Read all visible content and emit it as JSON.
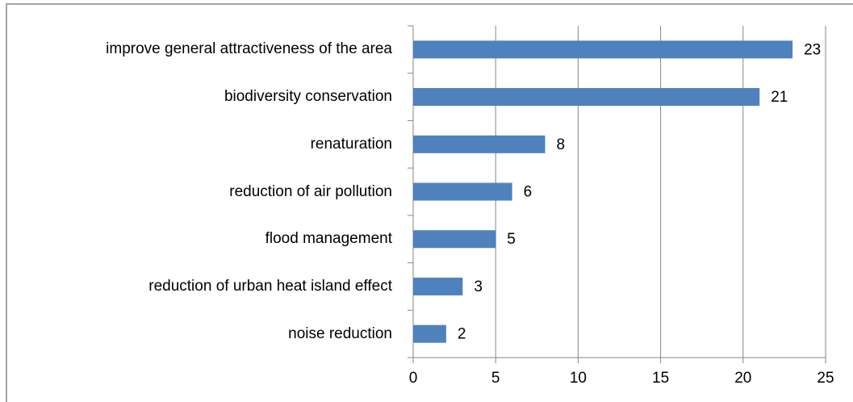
{
  "chart_data": {
    "type": "bar",
    "orientation": "horizontal",
    "categories": [
      "improve general attractiveness of the area",
      "biodiversity conservation",
      "renaturation",
      "reduction of air pollution",
      "flood management",
      "reduction of urban heat island effect",
      "noise reduction"
    ],
    "values": [
      23,
      21,
      8,
      6,
      5,
      3,
      2
    ],
    "color": "#4f81bd",
    "xlim": [
      0,
      25
    ],
    "xticks": [
      0,
      5,
      10,
      15,
      20,
      25
    ],
    "grid": true
  }
}
